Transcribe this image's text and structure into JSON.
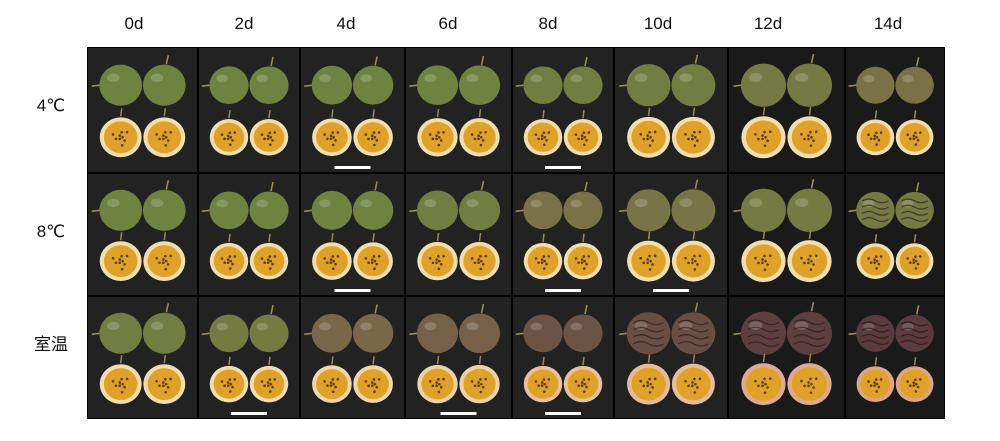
{
  "days": [
    "0d",
    "2d",
    "4d",
    "6d",
    "8d",
    "10d",
    "12d",
    "14d"
  ],
  "temperatures": [
    "4℃",
    "8℃",
    "室温"
  ],
  "colors": {
    "peel_fresh": "#6f8240",
    "peel_mid": "#7d6b4a",
    "peel_dark": "#5b3a3e",
    "pulp": "#e0a128",
    "pulp_ring": "#f0ddb0",
    "background": "#0b0b0b"
  },
  "fruit_state_by_row_day": [
    [
      0,
      0,
      0,
      0,
      0.1,
      0.1,
      0.2,
      0.35
    ],
    [
      0,
      0,
      0,
      0.1,
      0.35,
      0.3,
      0.15,
      0.2
    ],
    [
      0.1,
      0.15,
      0.55,
      0.6,
      0.75,
      0.8,
      0.95,
      1.0
    ]
  ],
  "wrinkled_by_row_day": [
    [
      false,
      false,
      false,
      false,
      false,
      false,
      false,
      false
    ],
    [
      false,
      false,
      false,
      false,
      false,
      false,
      false,
      true
    ],
    [
      false,
      false,
      false,
      false,
      false,
      true,
      true,
      true
    ]
  ]
}
